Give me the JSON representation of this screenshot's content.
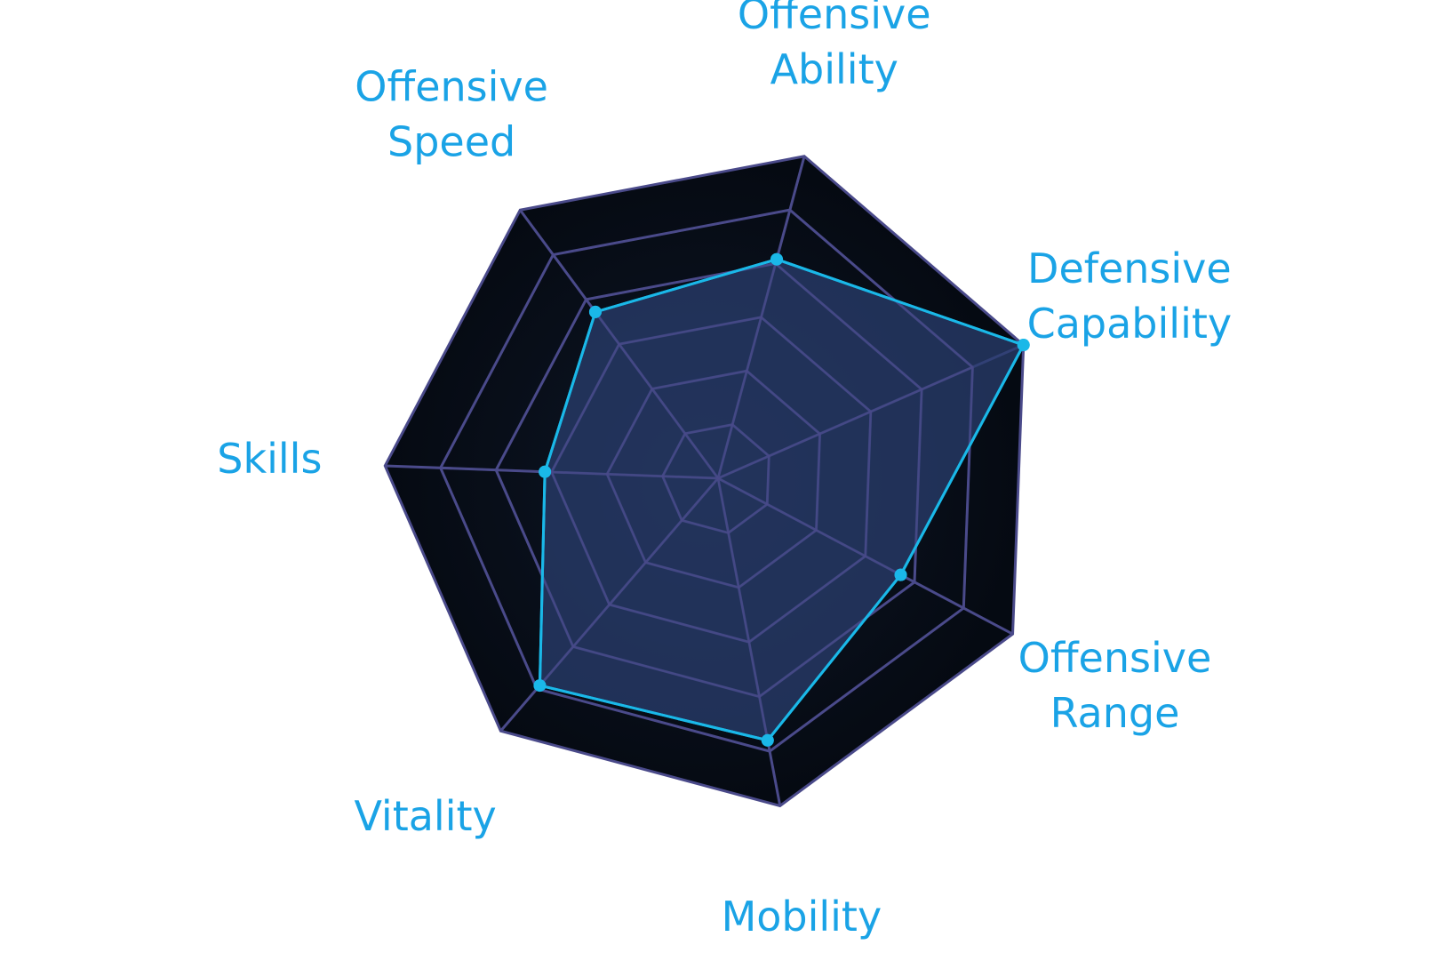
{
  "chart_data": {
    "type": "radar",
    "title": "",
    "axes": [
      {
        "lines": [
          "Offensive",
          "Ability"
        ]
      },
      {
        "lines": [
          "Defensive",
          "Capability"
        ]
      },
      {
        "lines": [
          "Offensive",
          "Range"
        ]
      },
      {
        "lines": [
          "Mobility"
        ]
      },
      {
        "lines": [
          "Vitality"
        ]
      },
      {
        "lines": [
          "Skills"
        ]
      },
      {
        "lines": [
          "Offensive",
          "Speed"
        ]
      }
    ],
    "range": [
      0,
      10
    ],
    "rings": 6,
    "series": [
      {
        "values": [
          6.8,
          10,
          6.2,
          8,
          8.2,
          5.2,
          6.2
        ]
      }
    ],
    "colors": {
      "background_outer": "#050a12",
      "background_inner": "#1e2a4a",
      "grid": "#4a4a8a",
      "series_line": "#1ab8e8",
      "series_fill": "#2a3d6e",
      "label": "#1aa3e6"
    }
  }
}
